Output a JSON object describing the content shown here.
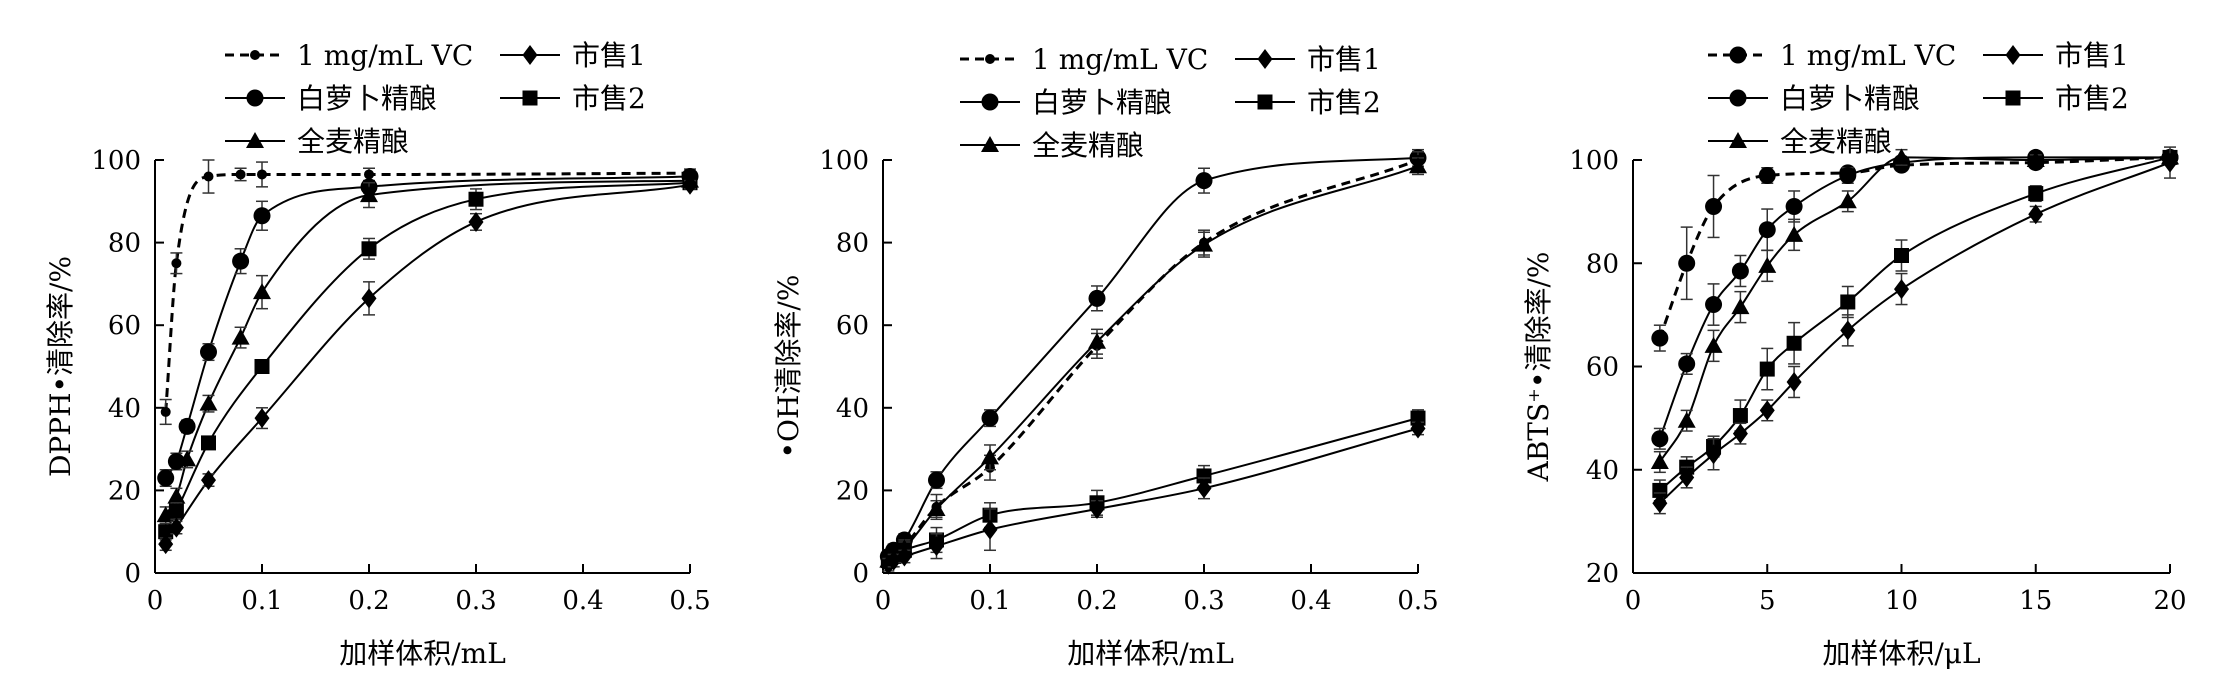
{
  "chart_data": [
    {
      "id": "dpph",
      "type": "line",
      "ylabel": "DPPH•清除率/%",
      "xlabel": "加样体积/mL",
      "xlim": [
        0,
        0.5
      ],
      "ylim": [
        0,
        100
      ],
      "xticks": [
        0,
        0.1,
        0.2,
        0.3,
        0.4,
        0.5
      ],
      "xtick_labels": [
        "0",
        "0.1",
        "0.2",
        "0.3",
        "0.4",
        "0.5"
      ],
      "yticks": [
        0,
        20,
        40,
        60,
        80,
        100
      ],
      "ytick_labels": [
        "0",
        "20",
        "40",
        "60",
        "80",
        "100"
      ],
      "legend": [
        {
          "label": "1 mg/mL VC",
          "series": "vc"
        },
        {
          "label": "市售1",
          "series": "s1"
        },
        {
          "label": "白萝卜精酿",
          "series": "radish"
        },
        {
          "label": "市售2",
          "series": "s2"
        },
        {
          "label": "全麦精酿",
          "series": "wheat"
        }
      ],
      "series": [
        {
          "key": "vc",
          "name": "1 mg/mL VC",
          "marker": "dot",
          "dashed": true,
          "x": [
            0.01,
            0.02,
            0.05,
            0.08,
            0.1,
            0.2,
            0.5
          ],
          "y": [
            39,
            75,
            96,
            96.5,
            96.5,
            96.5,
            96.8
          ],
          "err": [
            3,
            2.5,
            4,
            1.5,
            3,
            1.5,
            1
          ]
        },
        {
          "key": "radish",
          "name": "白萝卜精酿",
          "marker": "circle",
          "dashed": false,
          "x": [
            0.01,
            0.02,
            0.03,
            0.05,
            0.08,
            0.1,
            0.2,
            0.5
          ],
          "y": [
            23,
            27,
            35.5,
            53.5,
            75.5,
            86.5,
            93.5,
            96
          ],
          "err": [
            2,
            2,
            1.5,
            2,
            3,
            3.5,
            1.5,
            1
          ]
        },
        {
          "key": "wheat",
          "name": "全麦精酿",
          "marker": "triangle",
          "dashed": false,
          "x": [
            0.01,
            0.02,
            0.03,
            0.05,
            0.08,
            0.1,
            0.2,
            0.5
          ],
          "y": [
            14,
            18.5,
            27.5,
            41,
            57,
            68,
            91.5,
            95
          ],
          "err": [
            2,
            2,
            2,
            2,
            2.5,
            4,
            3,
            1
          ]
        },
        {
          "key": "s2",
          "name": "市售2",
          "marker": "square",
          "dashed": false,
          "x": [
            0.01,
            0.02,
            0.05,
            0.1,
            0.2,
            0.3,
            0.5
          ],
          "y": [
            10,
            15,
            31.5,
            50,
            78.5,
            90.5,
            94.5
          ],
          "err": [
            2,
            2,
            1.5,
            1.5,
            2.5,
            2.5,
            1
          ]
        },
        {
          "key": "s1",
          "name": "市售1",
          "marker": "diamond",
          "dashed": false,
          "x": [
            0.01,
            0.02,
            0.05,
            0.1,
            0.2,
            0.3,
            0.5
          ],
          "y": [
            7,
            11,
            22.5,
            37.5,
            66.5,
            85,
            94
          ],
          "err": [
            1.5,
            1.5,
            1.5,
            2.5,
            4,
            2,
            1
          ]
        }
      ]
    },
    {
      "id": "oh",
      "type": "line",
      "ylabel": "•OH清除率/%",
      "xlabel": "加样体积/mL",
      "xlim": [
        0,
        0.5
      ],
      "ylim": [
        0,
        100
      ],
      "xticks": [
        0,
        0.1,
        0.2,
        0.3,
        0.4,
        0.5
      ],
      "xtick_labels": [
        "0",
        "0.1",
        "0.2",
        "0.3",
        "0.4",
        "0.5"
      ],
      "yticks": [
        0,
        20,
        40,
        60,
        80,
        100
      ],
      "ytick_labels": [
        "0",
        "20",
        "40",
        "60",
        "80",
        "100"
      ],
      "legend": [
        {
          "label": "1 mg/mL VC",
          "series": "vc"
        },
        {
          "label": "市售1",
          "series": "s1"
        },
        {
          "label": "白萝卜精酿",
          "series": "radish"
        },
        {
          "label": "市售2",
          "series": "s2"
        },
        {
          "label": "全麦精酿",
          "series": "wheat"
        }
      ],
      "series": [
        {
          "key": "radish",
          "name": "白萝卜精酿",
          "marker": "circle",
          "dashed": false,
          "x": [
            0.005,
            0.01,
            0.02,
            0.05,
            0.1,
            0.2,
            0.3,
            0.5
          ],
          "y": [
            4,
            5.5,
            8,
            22.5,
            37.5,
            66.5,
            95,
            100.5
          ],
          "err": [
            1.5,
            1.5,
            1.5,
            2,
            2,
            3,
            3,
            2
          ]
        },
        {
          "key": "vc",
          "name": "1 mg/mL VC",
          "marker": "dot",
          "dashed": true,
          "x": [
            0.005,
            0.01,
            0.02,
            0.05,
            0.1,
            0.2,
            0.3,
            0.5
          ],
          "y": [
            3,
            4,
            6.5,
            16,
            25.5,
            55,
            80,
            100
          ],
          "err": [
            1.5,
            1.5,
            1.5,
            3,
            3,
            3,
            3,
            2
          ]
        },
        {
          "key": "wheat",
          "name": "全麦精酿",
          "marker": "triangle",
          "dashed": false,
          "x": [
            0.005,
            0.01,
            0.02,
            0.05,
            0.1,
            0.2,
            0.3,
            0.5
          ],
          "y": [
            3,
            4,
            6,
            15.5,
            28,
            56,
            79.5,
            98.5
          ],
          "err": [
            1.5,
            1.5,
            1.5,
            2,
            3,
            3,
            3,
            2
          ]
        },
        {
          "key": "s2",
          "name": "市售2",
          "marker": "square",
          "dashed": false,
          "x": [
            0.005,
            0.01,
            0.02,
            0.05,
            0.1,
            0.2,
            0.3,
            0.5
          ],
          "y": [
            3,
            4,
            5.5,
            8,
            14,
            17,
            23.5,
            37.5
          ],
          "err": [
            1.5,
            1.5,
            1.5,
            3,
            3,
            3,
            2.5,
            2
          ]
        },
        {
          "key": "s1",
          "name": "市售1",
          "marker": "diamond",
          "dashed": false,
          "x": [
            0.005,
            0.01,
            0.02,
            0.05,
            0.1,
            0.2,
            0.3,
            0.5
          ],
          "y": [
            2,
            3,
            4,
            6.5,
            10.5,
            15.5,
            20.5,
            35
          ],
          "err": [
            1.5,
            1.5,
            1.5,
            3,
            5,
            2,
            2.5,
            1.5
          ]
        }
      ]
    },
    {
      "id": "abts",
      "type": "line",
      "ylabel": "ABTS⁺•清除率/%",
      "xlabel": "加样体积/μL",
      "xlim": [
        0,
        20
      ],
      "ylim": [
        20,
        100
      ],
      "xticks": [
        0,
        5,
        10,
        15,
        20
      ],
      "xtick_labels": [
        "0",
        "5",
        "10",
        "15",
        "20"
      ],
      "yticks": [
        20,
        40,
        60,
        80,
        100
      ],
      "ytick_labels": [
        "20",
        "40",
        "60",
        "80",
        "100"
      ],
      "legend": [
        {
          "label": "1 mg/mL VC",
          "series": "vc"
        },
        {
          "label": "市售1",
          "series": "s1"
        },
        {
          "label": "白萝卜精酿",
          "series": "radish"
        },
        {
          "label": "市售2",
          "series": "s2"
        },
        {
          "label": "全麦精酿",
          "series": "wheat"
        }
      ],
      "series": [
        {
          "key": "vc",
          "name": "1 mg/mL VC",
          "marker": "circle",
          "dashed": true,
          "x": [
            1,
            2,
            3,
            5,
            8,
            10,
            15,
            20
          ],
          "y": [
            65.5,
            80,
            91,
            97,
            97.5,
            99,
            99.5,
            100.5
          ],
          "err": [
            2.5,
            7,
            6,
            1.5,
            1,
            1,
            1,
            1
          ]
        },
        {
          "key": "radish",
          "name": "白萝卜精酿",
          "marker": "circle",
          "dashed": false,
          "x": [
            1,
            2,
            3,
            4,
            5,
            6,
            8,
            10,
            15,
            20
          ],
          "y": [
            46,
            60.5,
            72,
            78.5,
            86.5,
            91,
            97,
            99.5,
            100.5,
            100.5
          ],
          "err": [
            2,
            2,
            4,
            3,
            4,
            3,
            1.5,
            1,
            1,
            1
          ]
        },
        {
          "key": "wheat",
          "name": "全麦精酿",
          "marker": "triangle",
          "dashed": false,
          "x": [
            1,
            2,
            3,
            4,
            5,
            6,
            8,
            10,
            15,
            20
          ],
          "y": [
            41.5,
            49.5,
            64,
            71.5,
            79.5,
            85.5,
            92,
            100.5,
            100,
            100.5
          ],
          "err": [
            2,
            2,
            3,
            3,
            3,
            3,
            2,
            1.5,
            1,
            1
          ]
        },
        {
          "key": "s2",
          "name": "市售2",
          "marker": "square",
          "dashed": false,
          "x": [
            1,
            2,
            3,
            4,
            5,
            6,
            8,
            10,
            15,
            20
          ],
          "y": [
            36,
            40.5,
            44.5,
            50.5,
            59.5,
            64.5,
            72.5,
            81.5,
            93.5,
            100.5
          ],
          "err": [
            2,
            2,
            2,
            3,
            4,
            4,
            3,
            3,
            1.5,
            1
          ]
        },
        {
          "key": "s1",
          "name": "市售1",
          "marker": "diamond",
          "dashed": false,
          "x": [
            1,
            2,
            3,
            4,
            5,
            6,
            8,
            10,
            15,
            20
          ],
          "y": [
            33.5,
            38.5,
            43,
            47,
            51.5,
            57,
            67,
            75,
            89.5,
            99.5
          ],
          "err": [
            2,
            2,
            3,
            2,
            2,
            3,
            3,
            3,
            1.5,
            3
          ]
        }
      ]
    }
  ]
}
